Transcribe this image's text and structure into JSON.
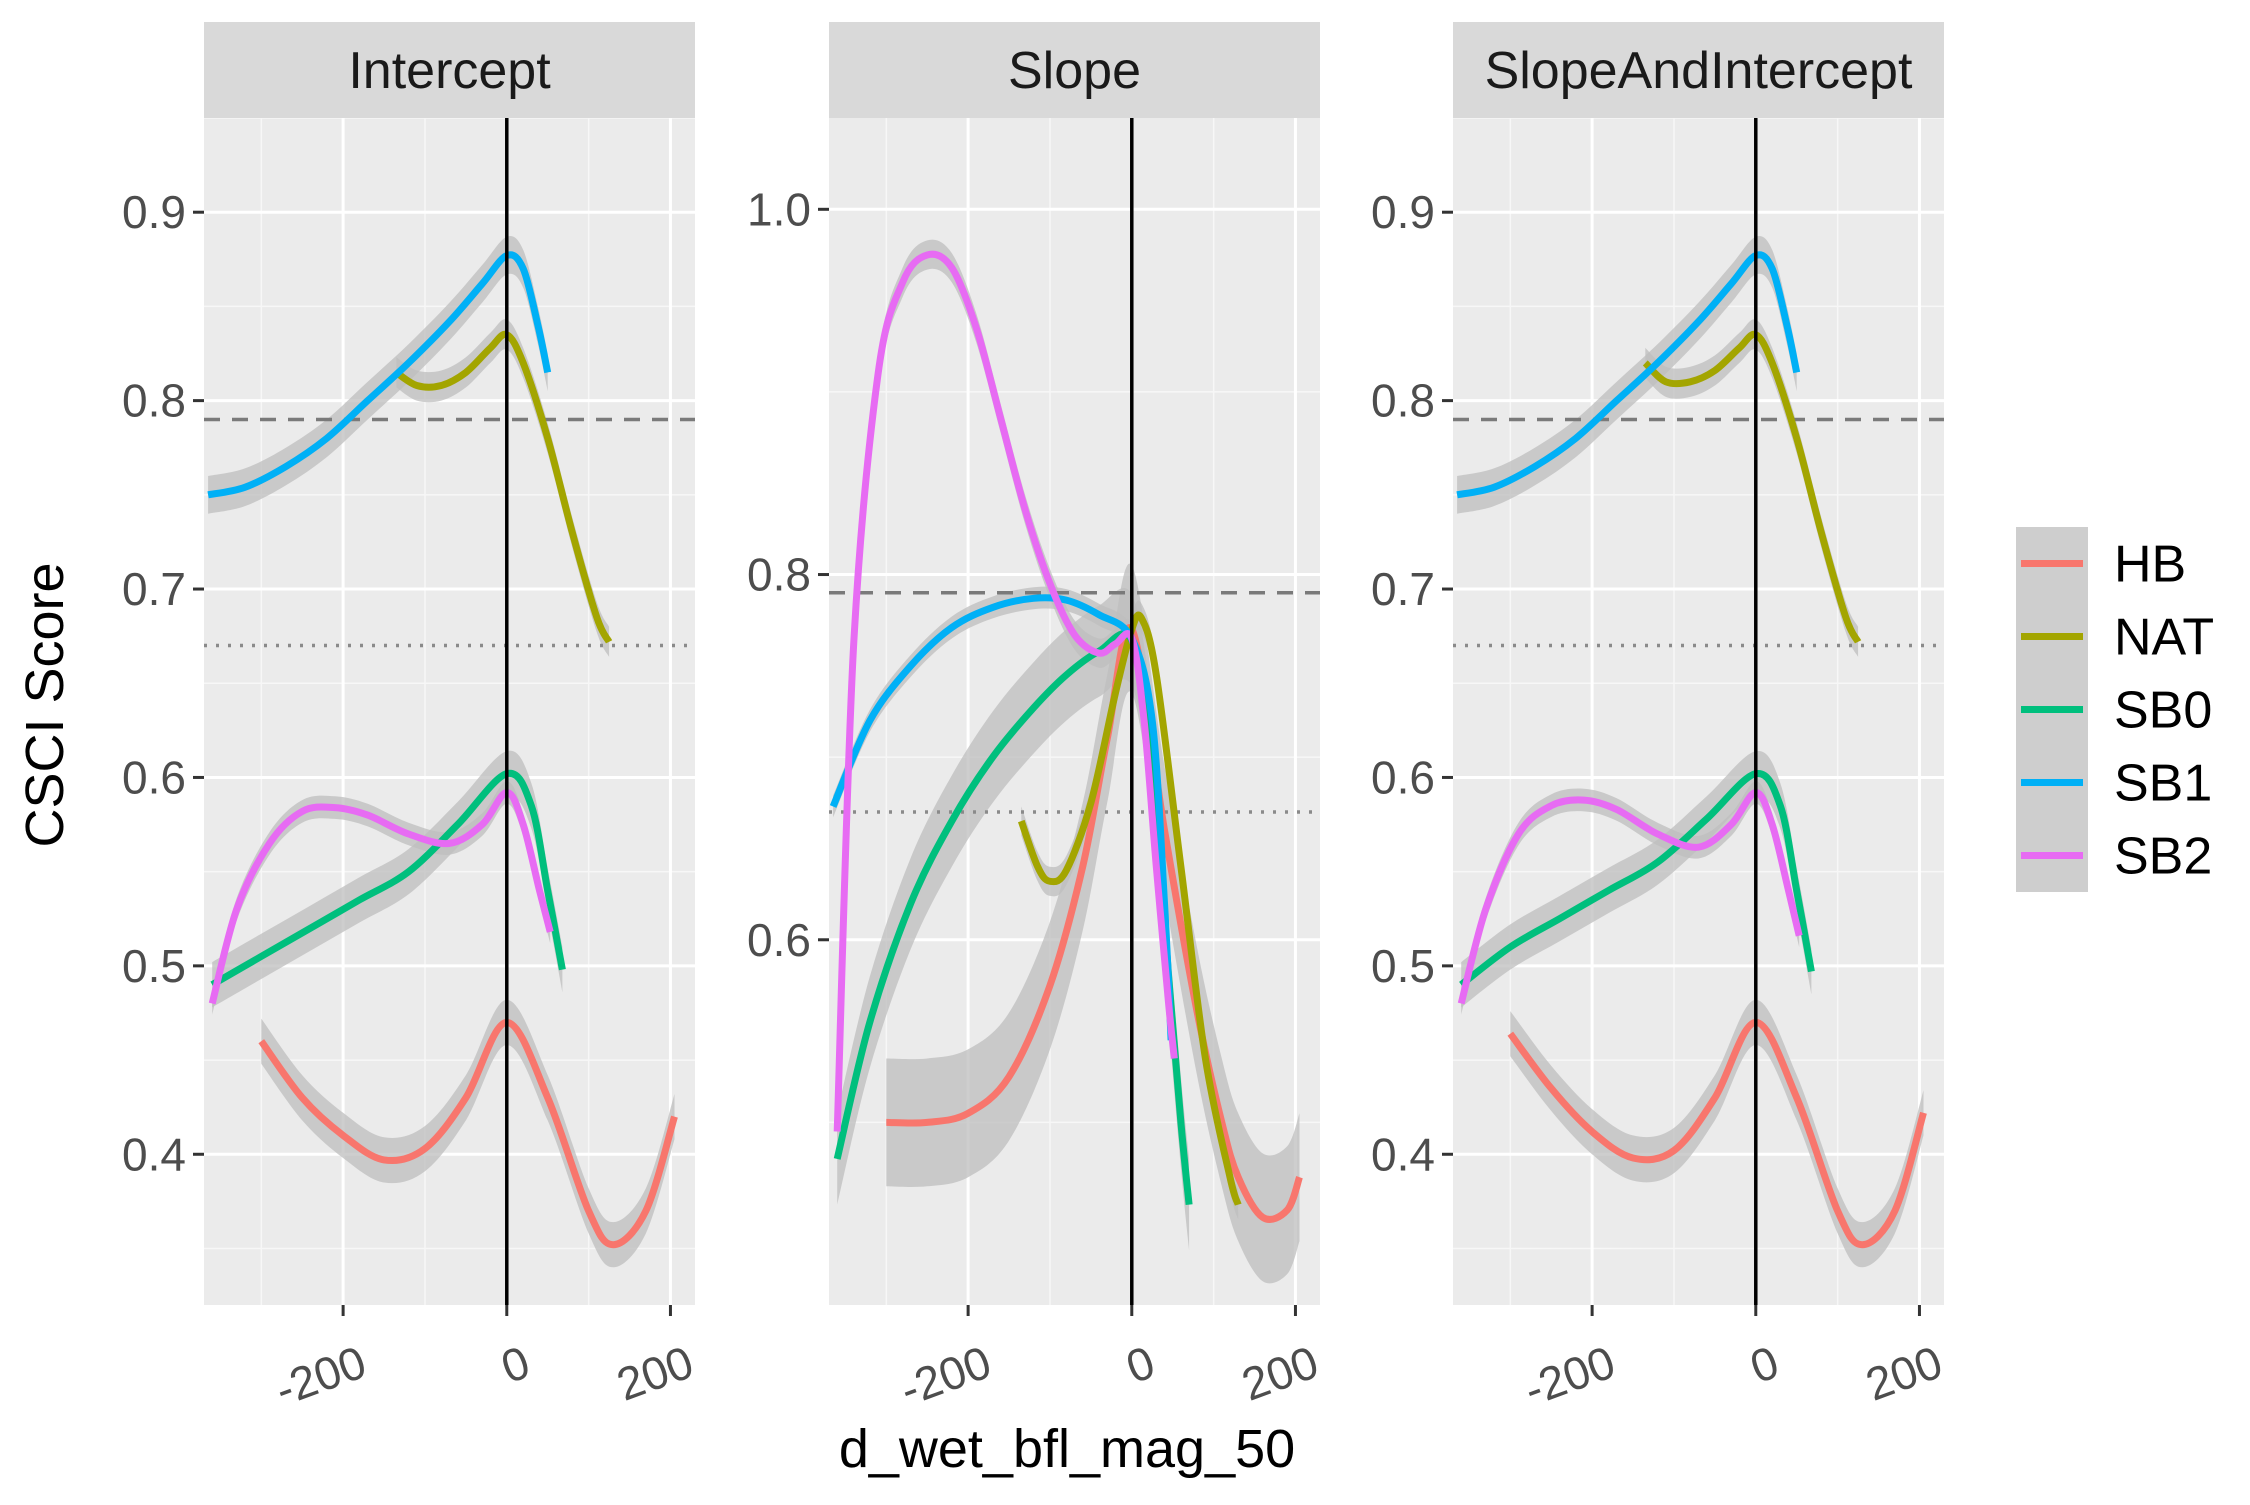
{
  "chart_data": {
    "type": "line",
    "xlabel": "d_wet_bfl_mag_50",
    "ylabel": "CSCI Score",
    "facet_style": "ggplot2 grey panels, smooth curves with grey confidence ribbons",
    "grid": true,
    "legend_position": "right",
    "reference_lines": {
      "vertical_x": 0,
      "dashed_y": 0.79,
      "dotted_y": 0.67
    },
    "legend": {
      "title": "",
      "items": [
        "HB",
        "NAT",
        "SB0",
        "SB1",
        "SB2"
      ]
    },
    "colors": {
      "HB": "#F8766D",
      "NAT": "#A3A500",
      "SB0": "#00BF7D",
      "SB1": "#00B0F6",
      "SB2": "#E76BF3",
      "ribbon": "#bdbdbd",
      "panel": "#ebebeb",
      "strip": "#d9d9d9"
    },
    "panels": [
      {
        "title": "Intercept",
        "xlim": [
          -370,
          230
        ],
        "ylim": [
          0.32,
          0.95
        ],
        "x_ticks": [
          -200,
          0,
          200
        ],
        "x_tick_labels": [
          "-200",
          "0",
          "200"
        ],
        "y_ticks": [
          0.4,
          0.5,
          0.6,
          0.7,
          0.8,
          0.9
        ],
        "y_tick_labels": [
          "0.4",
          "0.5",
          "0.6",
          "0.7",
          "0.8",
          "0.9"
        ],
        "series": [
          {
            "name": "HB",
            "x": [
              -300,
              -250,
              -200,
              -150,
              -100,
              -50,
              0,
              50,
              100,
              130,
              170,
              205
            ],
            "y": [
              0.46,
              0.43,
              0.41,
              0.397,
              0.403,
              0.43,
              0.47,
              0.43,
              0.37,
              0.352,
              0.37,
              0.42
            ],
            "ribbon": 0.012
          },
          {
            "name": "NAT",
            "x": [
              -135,
              -110,
              -80,
              -50,
              -20,
              0,
              20,
              50,
              80,
              110,
              125
            ],
            "y": [
              0.815,
              0.808,
              0.808,
              0.815,
              0.828,
              0.835,
              0.82,
              0.78,
              0.73,
              0.685,
              0.672
            ],
            "ribbon": 0.008
          },
          {
            "name": "SB0",
            "x": [
              -360,
              -300,
              -240,
              -180,
              -120,
              -60,
              0,
              30,
              50,
              68
            ],
            "y": [
              0.49,
              0.505,
              0.52,
              0.535,
              0.55,
              0.575,
              0.602,
              0.585,
              0.54,
              0.498
            ],
            "ribbon": 0.012
          },
          {
            "name": "SB1",
            "x": [
              -365,
              -320,
              -270,
              -220,
              -170,
              -120,
              -70,
              -30,
              0,
              20,
              38,
              50
            ],
            "y": [
              0.75,
              0.754,
              0.765,
              0.78,
              0.8,
              0.82,
              0.842,
              0.862,
              0.877,
              0.87,
              0.84,
              0.815
            ],
            "ribbon": 0.01
          },
          {
            "name": "SB2",
            "x": [
              -360,
              -330,
              -290,
              -250,
              -210,
              -170,
              -120,
              -70,
              -30,
              0,
              20,
              40,
              53
            ],
            "y": [
              0.48,
              0.53,
              0.565,
              0.582,
              0.584,
              0.58,
              0.57,
              0.565,
              0.575,
              0.592,
              0.575,
              0.54,
              0.518
            ],
            "ribbon": 0.006
          }
        ]
      },
      {
        "title": "Slope",
        "xlim": [
          -370,
          230
        ],
        "ylim": [
          0.4,
          1.05
        ],
        "x_ticks": [
          -200,
          0,
          200
        ],
        "x_tick_labels": [
          "-200",
          "0",
          "200"
        ],
        "y_ticks": [
          0.6,
          0.8,
          1.0
        ],
        "y_tick_labels": [
          "0.6",
          "0.8",
          "1.0"
        ],
        "series": [
          {
            "name": "HB",
            "x": [
              -300,
              -250,
              -200,
              -150,
              -100,
              -60,
              -30,
              0,
              40,
              80,
              110,
              130,
              160,
              190,
              205
            ],
            "y": [
              0.5,
              0.5,
              0.505,
              0.525,
              0.575,
              0.64,
              0.71,
              0.77,
              0.66,
              0.56,
              0.5,
              0.47,
              0.448,
              0.452,
              0.47
            ],
            "ribbon": 0.035
          },
          {
            "name": "NAT",
            "x": [
              -135,
              -115,
              -100,
              -80,
              -50,
              -20,
              0,
              12,
              30,
              60,
              90,
              120,
              130
            ],
            "y": [
              0.665,
              0.64,
              0.632,
              0.638,
              0.675,
              0.735,
              0.77,
              0.776,
              0.745,
              0.64,
              0.535,
              0.47,
              0.455
            ],
            "ribbon": 0.008
          },
          {
            "name": "SB0",
            "x": [
              -360,
              -320,
              -270,
              -220,
              -170,
              -120,
              -80,
              -40,
              0,
              25,
              45,
              60,
              70
            ],
            "y": [
              0.48,
              0.555,
              0.62,
              0.665,
              0.7,
              0.727,
              0.745,
              0.758,
              0.764,
              0.7,
              0.58,
              0.5,
              0.455
            ],
            "ribbon": 0.025
          },
          {
            "name": "SB1",
            "x": [
              -365,
              -320,
              -270,
              -220,
              -170,
              -120,
              -80,
              -40,
              0,
              25,
              40,
              48
            ],
            "y": [
              0.673,
              0.72,
              0.75,
              0.771,
              0.782,
              0.787,
              0.786,
              0.778,
              0.765,
              0.72,
              0.62,
              0.545
            ],
            "ribbon": 0.006
          },
          {
            "name": "SB2",
            "x": [
              -360,
              -340,
              -310,
              -280,
              -250,
              -220,
              -190,
              -160,
              -130,
              -100,
              -70,
              -40,
              -20,
              0,
              15,
              30,
              45,
              52
            ],
            "y": [
              0.495,
              0.76,
              0.91,
              0.96,
              0.975,
              0.968,
              0.935,
              0.885,
              0.835,
              0.795,
              0.767,
              0.757,
              0.762,
              0.765,
              0.72,
              0.64,
              0.565,
              0.535
            ],
            "ribbon": 0.008
          }
        ]
      },
      {
        "title": "SlopeAndIntercept",
        "xlim": [
          -370,
          230
        ],
        "ylim": [
          0.32,
          0.95
        ],
        "x_ticks": [
          -200,
          0,
          200
        ],
        "x_tick_labels": [
          "-200",
          "0",
          "200"
        ],
        "y_ticks": [
          0.4,
          0.5,
          0.6,
          0.7,
          0.8,
          0.9
        ],
        "y_tick_labels": [
          "0.4",
          "0.5",
          "0.6",
          "0.7",
          "0.8",
          "0.9"
        ],
        "series": [
          {
            "name": "HB",
            "x": [
              -300,
              -250,
              -200,
              -150,
              -100,
              -50,
              0,
              50,
              100,
              130,
              170,
              205
            ],
            "y": [
              0.464,
              0.435,
              0.412,
              0.398,
              0.402,
              0.43,
              0.47,
              0.43,
              0.37,
              0.352,
              0.37,
              0.422
            ],
            "ribbon": 0.012
          },
          {
            "name": "NAT",
            "x": [
              -135,
              -110,
              -80,
              -50,
              -20,
              0,
              20,
              50,
              80,
              110,
              125
            ],
            "y": [
              0.82,
              0.81,
              0.81,
              0.816,
              0.828,
              0.835,
              0.82,
              0.78,
              0.73,
              0.685,
              0.672
            ],
            "ribbon": 0.008
          },
          {
            "name": "SB0",
            "x": [
              -360,
              -300,
              -240,
              -180,
              -120,
              -60,
              0,
              30,
              50,
              68
            ],
            "y": [
              0.49,
              0.51,
              0.525,
              0.54,
              0.555,
              0.578,
              0.602,
              0.585,
              0.54,
              0.497
            ],
            "ribbon": 0.012
          },
          {
            "name": "SB1",
            "x": [
              -365,
              -320,
              -270,
              -220,
              -170,
              -120,
              -70,
              -30,
              0,
              20,
              38,
              50
            ],
            "y": [
              0.75,
              0.754,
              0.765,
              0.78,
              0.8,
              0.82,
              0.842,
              0.862,
              0.877,
              0.87,
              0.84,
              0.815
            ],
            "ribbon": 0.01
          },
          {
            "name": "SB2",
            "x": [
              -360,
              -330,
              -290,
              -250,
              -210,
              -170,
              -120,
              -70,
              -30,
              0,
              20,
              40,
              53
            ],
            "y": [
              0.48,
              0.53,
              0.57,
              0.585,
              0.588,
              0.583,
              0.57,
              0.563,
              0.575,
              0.592,
              0.575,
              0.54,
              0.516
            ],
            "ribbon": 0.006
          }
        ]
      }
    ]
  }
}
